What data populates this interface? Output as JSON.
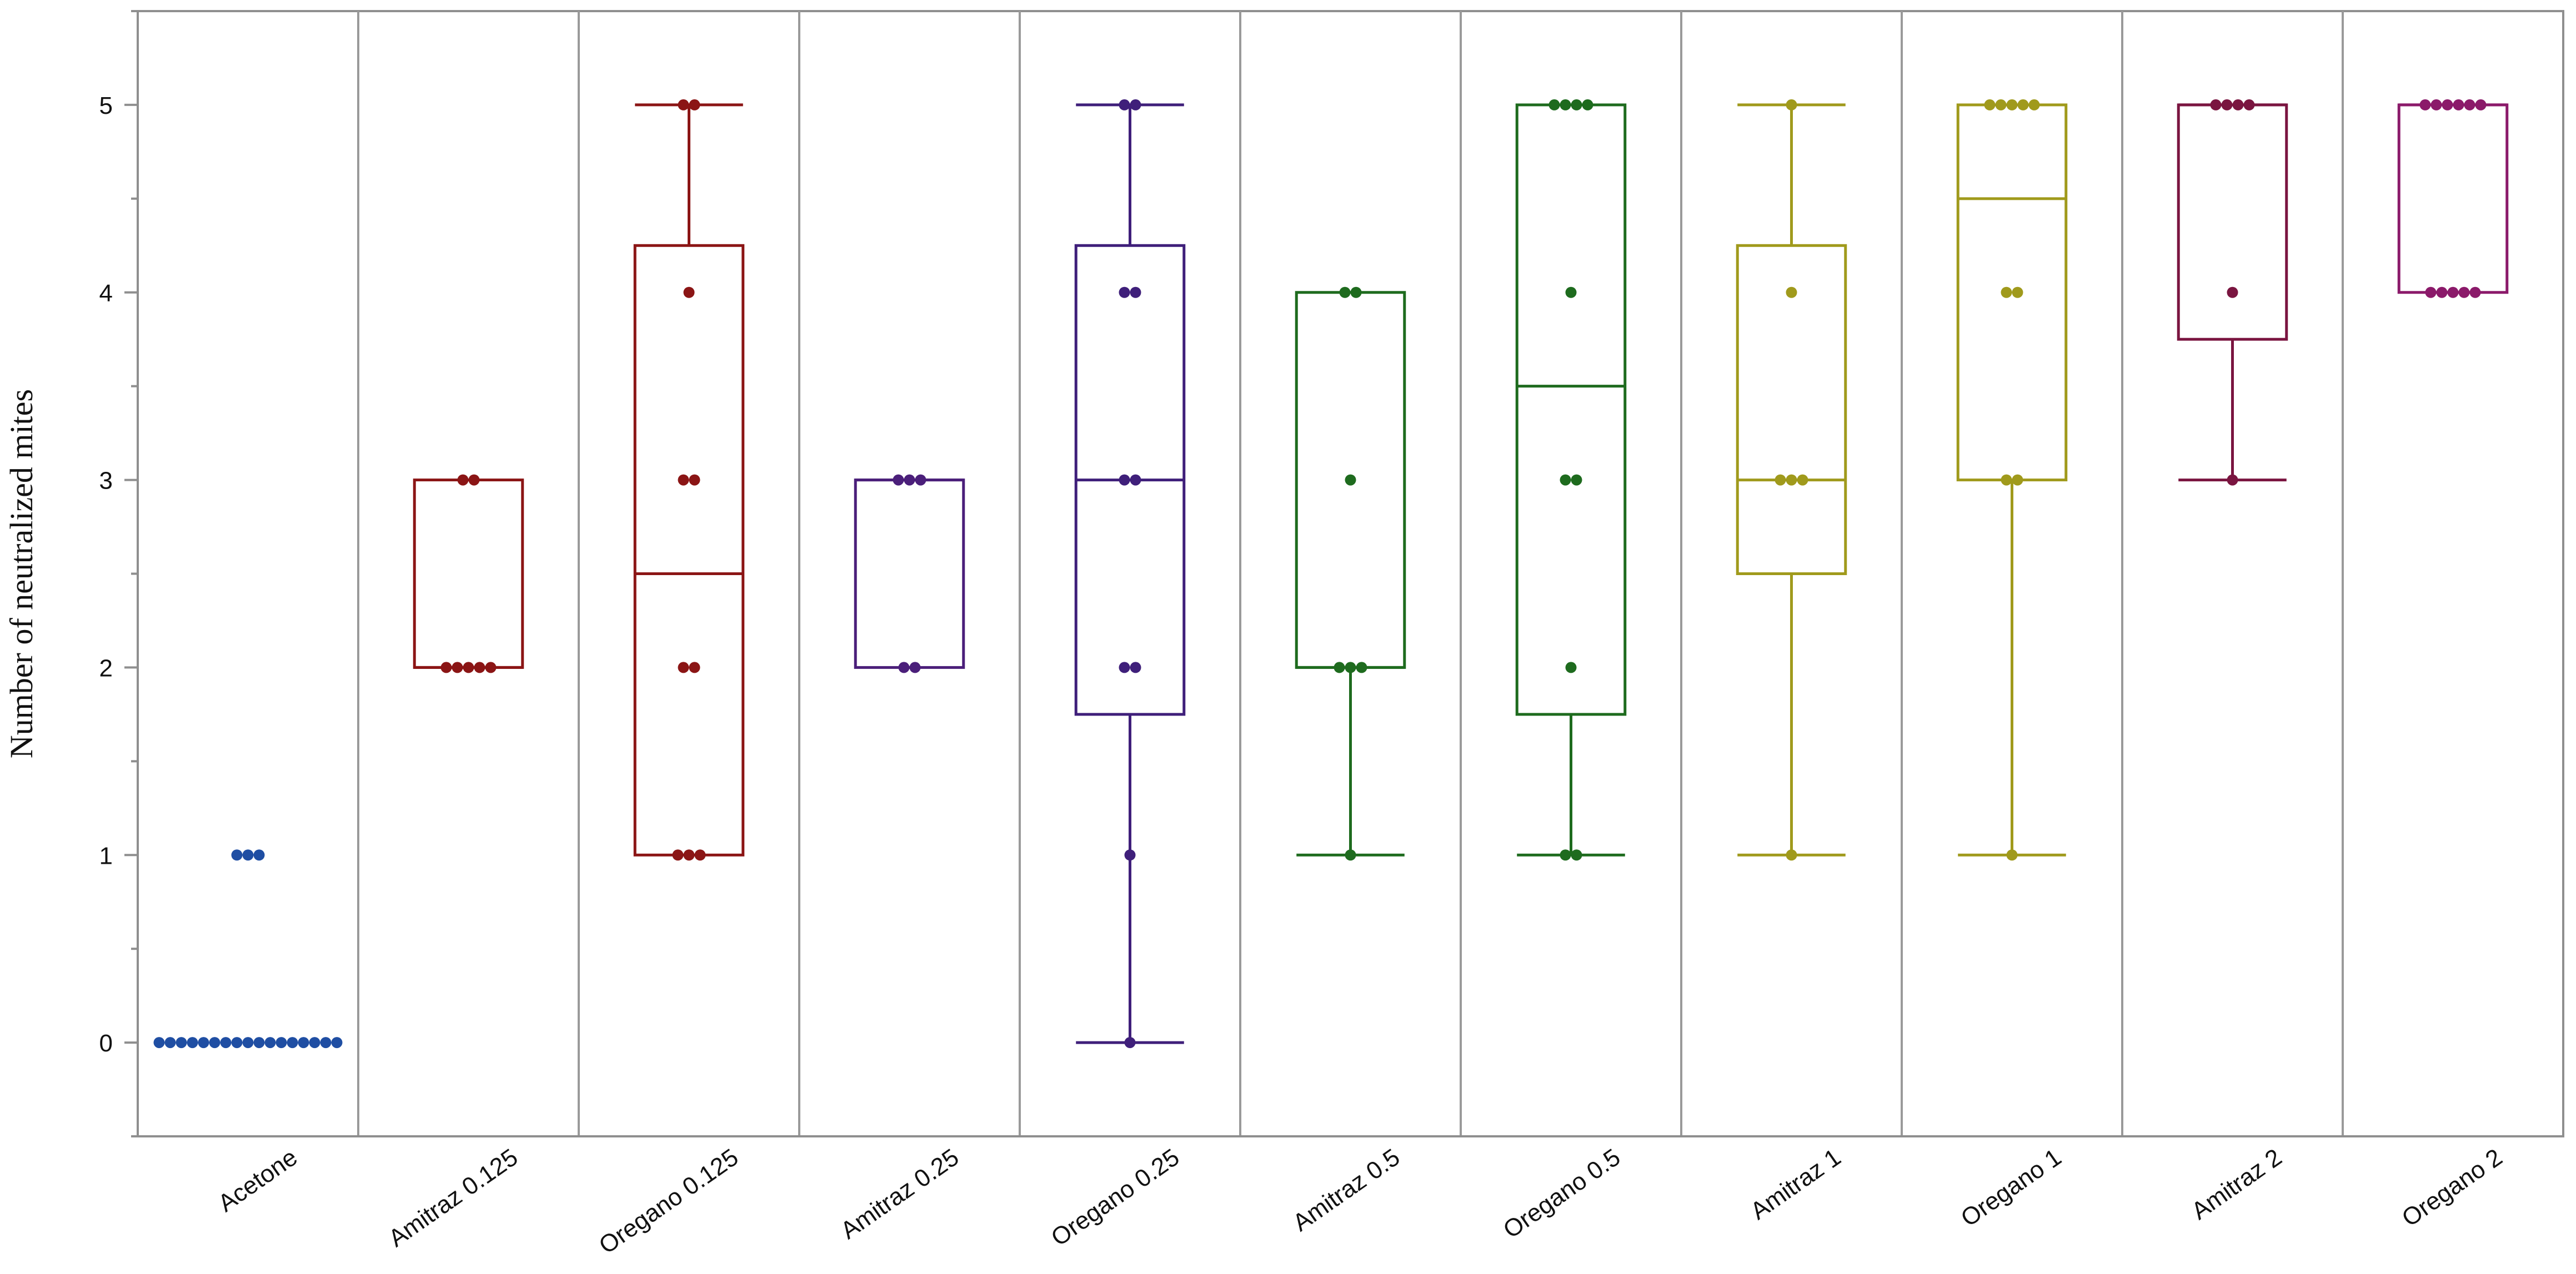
{
  "chart_data": {
    "type": "box",
    "title": "",
    "xlabel": "",
    "ylabel": "Number of neutralized mites",
    "ylim": [
      -0.5,
      5.5
    ],
    "y_ticks": [
      0,
      1,
      2,
      3,
      4,
      5
    ],
    "y_tick_labels": [
      "0",
      "1",
      "2",
      "3",
      "4",
      "5"
    ],
    "grid": false,
    "categories": [
      "Acetone",
      "Amitraz 0.125",
      "Oregano 0.125",
      "Amitraz 0.25",
      "Oregano 0.25",
      "Amitraz 0.5",
      "Oregano 0.5",
      "Amitraz 1",
      "Oregano 1",
      "Amitraz 2",
      "Oregano 2"
    ],
    "series": [
      {
        "name": "Acetone",
        "color": "#1f4ea3",
        "box": false,
        "points": [
          0,
          0,
          0,
          0,
          0,
          0,
          0,
          0,
          0,
          0,
          0,
          0,
          0,
          0,
          0,
          0,
          0,
          1,
          1,
          1
        ]
      },
      {
        "name": "Amitraz 0.125",
        "color": "#8b1515",
        "box": true,
        "stats": {
          "min": 2,
          "q1": 2,
          "median": 2,
          "q3": 3,
          "max": 3
        },
        "points": [
          2,
          2,
          2,
          2,
          2,
          3,
          3
        ]
      },
      {
        "name": "Oregano 0.125",
        "color": "#8b1515",
        "box": true,
        "stats": {
          "min": 1,
          "q1": 1,
          "median": 2.5,
          "q3": 4.25,
          "max": 5
        },
        "points": [
          1,
          1,
          1,
          2,
          2,
          3,
          3,
          4,
          5,
          5
        ]
      },
      {
        "name": "Amitraz 0.25",
        "color": "#4b1f7a",
        "box": true,
        "stats": {
          "min": 2,
          "q1": 2,
          "median": 3,
          "q3": 3,
          "max": 3
        },
        "points": [
          2,
          2,
          3,
          3,
          3
        ]
      },
      {
        "name": "Oregano 0.25",
        "color": "#3f1f7a",
        "box": true,
        "stats": {
          "min": 0,
          "q1": 1.75,
          "median": 3,
          "q3": 4.25,
          "max": 5
        },
        "points": [
          0,
          1,
          2,
          2,
          3,
          3,
          4,
          4,
          5,
          5
        ]
      },
      {
        "name": "Amitraz 0.5",
        "color": "#1e6b1e",
        "box": true,
        "stats": {
          "min": 1,
          "q1": 2,
          "median": 2,
          "q3": 4,
          "max": 4
        },
        "points": [
          1,
          2,
          2,
          2,
          3,
          4,
          4
        ]
      },
      {
        "name": "Oregano 0.5",
        "color": "#1e6b1e",
        "box": true,
        "stats": {
          "min": 1,
          "q1": 1.75,
          "median": 3.5,
          "q3": 5,
          "max": 5
        },
        "points": [
          1,
          1,
          2,
          3,
          3,
          4,
          5,
          5,
          5,
          5
        ]
      },
      {
        "name": "Amitraz 1",
        "color": "#a09a1c",
        "box": true,
        "stats": {
          "min": 1,
          "q1": 2.5,
          "median": 3,
          "q3": 4.25,
          "max": 5
        },
        "points": [
          1,
          3,
          3,
          3,
          4,
          5
        ]
      },
      {
        "name": "Oregano 1",
        "color": "#a09a1c",
        "box": true,
        "stats": {
          "min": 1,
          "q1": 3,
          "median": 4.5,
          "q3": 5,
          "max": 5
        },
        "points": [
          1,
          3,
          3,
          4,
          4,
          5,
          5,
          5,
          5,
          5
        ]
      },
      {
        "name": "Amitraz 2",
        "color": "#7a1540",
        "box": true,
        "stats": {
          "min": 3,
          "q1": 3.75,
          "median": 5,
          "q3": 5,
          "max": 5
        },
        "points": [
          3,
          4,
          5,
          5,
          5,
          5
        ]
      },
      {
        "name": "Oregano 2",
        "color": "#8b1a6a",
        "box": true,
        "stats": {
          "min": 4,
          "q1": 4,
          "median": 5,
          "q3": 5,
          "max": 5
        },
        "points": [
          4,
          4,
          4,
          4,
          4,
          5,
          5,
          5,
          5,
          5,
          5
        ]
      }
    ]
  }
}
